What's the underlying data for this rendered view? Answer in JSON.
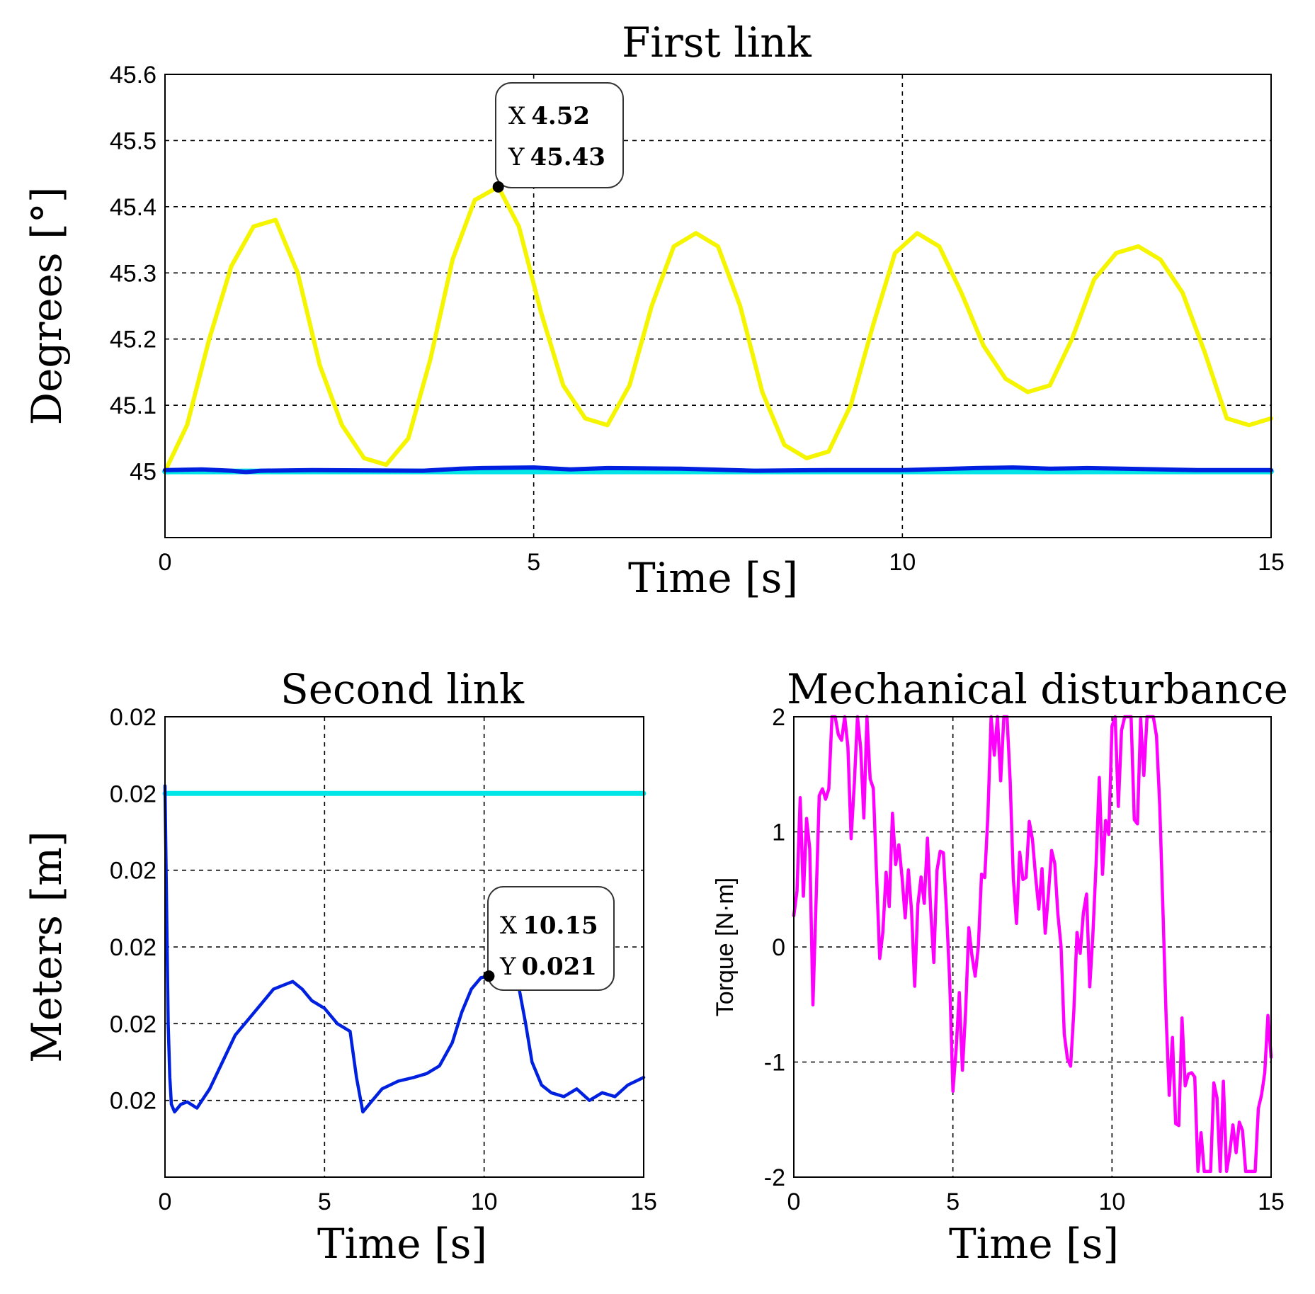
{
  "chart_data": [
    {
      "id": "first",
      "type": "line",
      "title": "First link",
      "xlabel": "Time [s]",
      "ylabel": "Degrees [°]",
      "xlim": [
        0,
        15
      ],
      "ylim": [
        44.9,
        45.6
      ],
      "grid": true,
      "xticks": [
        0,
        5,
        10,
        15
      ],
      "xtick_labels": [
        "0",
        "5",
        "10",
        "15"
      ],
      "yticks": [
        45,
        45.1,
        45.2,
        45.3,
        45.4,
        45.5,
        45.6
      ],
      "ytick_labels": [
        "45",
        "45.1",
        "45.2",
        "45.3",
        "45.4",
        "45.5",
        "45.6"
      ],
      "series": [
        {
          "name": "first-link-response",
          "color": "#f5f500",
          "x": [
            0,
            0.3,
            0.6,
            0.9,
            1.2,
            1.5,
            1.8,
            2.1,
            2.4,
            2.7,
            3.0,
            3.3,
            3.6,
            3.9,
            4.2,
            4.52,
            4.8,
            5.1,
            5.4,
            5.7,
            6.0,
            6.3,
            6.6,
            6.9,
            7.2,
            7.5,
            7.8,
            8.1,
            8.4,
            8.7,
            9.0,
            9.3,
            9.6,
            9.9,
            10.2,
            10.5,
            10.8,
            11.1,
            11.4,
            11.7,
            12.0,
            12.3,
            12.6,
            12.9,
            13.2,
            13.5,
            13.8,
            14.1,
            14.4,
            14.7,
            15.0
          ],
          "y": [
            45.0,
            45.07,
            45.2,
            45.31,
            45.37,
            45.38,
            45.3,
            45.16,
            45.07,
            45.02,
            45.01,
            45.05,
            45.17,
            45.32,
            45.41,
            45.43,
            45.37,
            45.24,
            45.13,
            45.08,
            45.07,
            45.13,
            45.25,
            45.34,
            45.36,
            45.34,
            45.25,
            45.12,
            45.04,
            45.02,
            45.03,
            45.1,
            45.22,
            45.33,
            45.36,
            45.34,
            45.27,
            45.19,
            45.14,
            45.12,
            45.13,
            45.2,
            45.29,
            45.33,
            45.34,
            45.32,
            45.27,
            45.18,
            45.08,
            45.07,
            45.08
          ]
        },
        {
          "name": "first-link-reference",
          "color": "#00e5e5",
          "x": [
            0,
            15
          ],
          "y": [
            45.0,
            45.0
          ]
        },
        {
          "name": "first-link-blue",
          "color": "#0020e0",
          "x": [
            0,
            0.5,
            0.9,
            1.1,
            1.3,
            2.0,
            3.5,
            4.0,
            4.3,
            5.0,
            5.5,
            6.0,
            7.0,
            8.0,
            9.0,
            10.0,
            11.0,
            11.5,
            12.0,
            12.5,
            13.0,
            14.0,
            15.0
          ],
          "y": [
            45.002,
            45.003,
            45.001,
            44.999,
            45.001,
            45.002,
            45.001,
            45.004,
            45.005,
            45.006,
            45.003,
            45.005,
            45.004,
            45.001,
            45.002,
            45.002,
            45.005,
            45.006,
            45.004,
            45.005,
            45.004,
            45.002,
            45.002
          ]
        }
      ],
      "annotations": [
        {
          "x": 4.52,
          "y": 45.43,
          "label_x": "X",
          "label_y": "Y",
          "value_x": "4.52",
          "value_y": "45.43"
        }
      ]
    },
    {
      "id": "second",
      "type": "line",
      "title": "Second link",
      "xlabel": "Time [s]",
      "ylabel": "Meters [m]",
      "xlim": [
        0,
        15
      ],
      "ylim": [
        0,
        6
      ],
      "grid": true,
      "xticks": [
        0,
        5,
        10,
        15
      ],
      "xtick_labels": [
        "0",
        "5",
        "10",
        "15"
      ],
      "yticks": [
        1,
        2,
        3,
        4,
        5,
        6
      ],
      "ytick_labels": [
        "0.02",
        "0.02",
        "0.02",
        "0.02",
        "0.02",
        "0.02"
      ],
      "series": [
        {
          "name": "second-link-reference",
          "color": "#00e5e5",
          "x": [
            0,
            15
          ],
          "y": [
            5.0,
            5.0
          ]
        },
        {
          "name": "second-link-response",
          "color": "#0020e0",
          "x": [
            0,
            0.05,
            0.1,
            0.15,
            0.2,
            0.3,
            0.5,
            0.7,
            1.0,
            1.4,
            1.8,
            2.2,
            2.6,
            3.0,
            3.4,
            3.7,
            4.0,
            4.3,
            4.6,
            5.0,
            5.4,
            5.8,
            6.0,
            6.2,
            6.4,
            6.8,
            7.3,
            7.8,
            8.2,
            8.6,
            9.0,
            9.3,
            9.6,
            9.9,
            10.15,
            10.5,
            10.8,
            11.1,
            11.3,
            11.5,
            11.8,
            12.1,
            12.5,
            12.9,
            13.3,
            13.7,
            14.1,
            14.5,
            15.0
          ],
          "y": [
            5.1,
            3.5,
            2.0,
            1.3,
            0.95,
            0.85,
            0.95,
            0.98,
            0.9,
            1.15,
            1.5,
            1.85,
            2.05,
            2.25,
            2.45,
            2.5,
            2.55,
            2.45,
            2.3,
            2.2,
            2.0,
            1.9,
            1.3,
            0.85,
            0.95,
            1.15,
            1.25,
            1.3,
            1.35,
            1.45,
            1.75,
            2.15,
            2.45,
            2.6,
            2.62,
            2.55,
            2.55,
            2.45,
            2.0,
            1.5,
            1.2,
            1.1,
            1.05,
            1.15,
            1.0,
            1.1,
            1.05,
            1.2,
            1.3
          ]
        }
      ],
      "annotations": [
        {
          "x": 10.15,
          "y": 2.62,
          "label_x": "X",
          "label_y": "Y",
          "value_x": "10.15",
          "value_y": "0.021"
        }
      ]
    },
    {
      "id": "disturbance",
      "type": "line",
      "title": "Mechanical disturbance",
      "xlabel": "Time [s]",
      "ylabel": "Torque [N·m]",
      "xlim": [
        0,
        15
      ],
      "ylim": [
        -2,
        2
      ],
      "grid": true,
      "xticks": [
        0,
        5,
        10,
        15
      ],
      "xtick_labels": [
        "0",
        "5",
        "10",
        "15"
      ],
      "yticks": [
        -2,
        -1,
        0,
        1,
        2
      ],
      "ytick_labels": [
        "-2",
        "-1",
        "0",
        "1",
        "2"
      ],
      "series": [
        {
          "name": "disturbance-torque",
          "color": "#ff00ff",
          "seed": 7,
          "steps": 150,
          "range": [
            -1.95,
            2.0
          ]
        }
      ]
    }
  ]
}
